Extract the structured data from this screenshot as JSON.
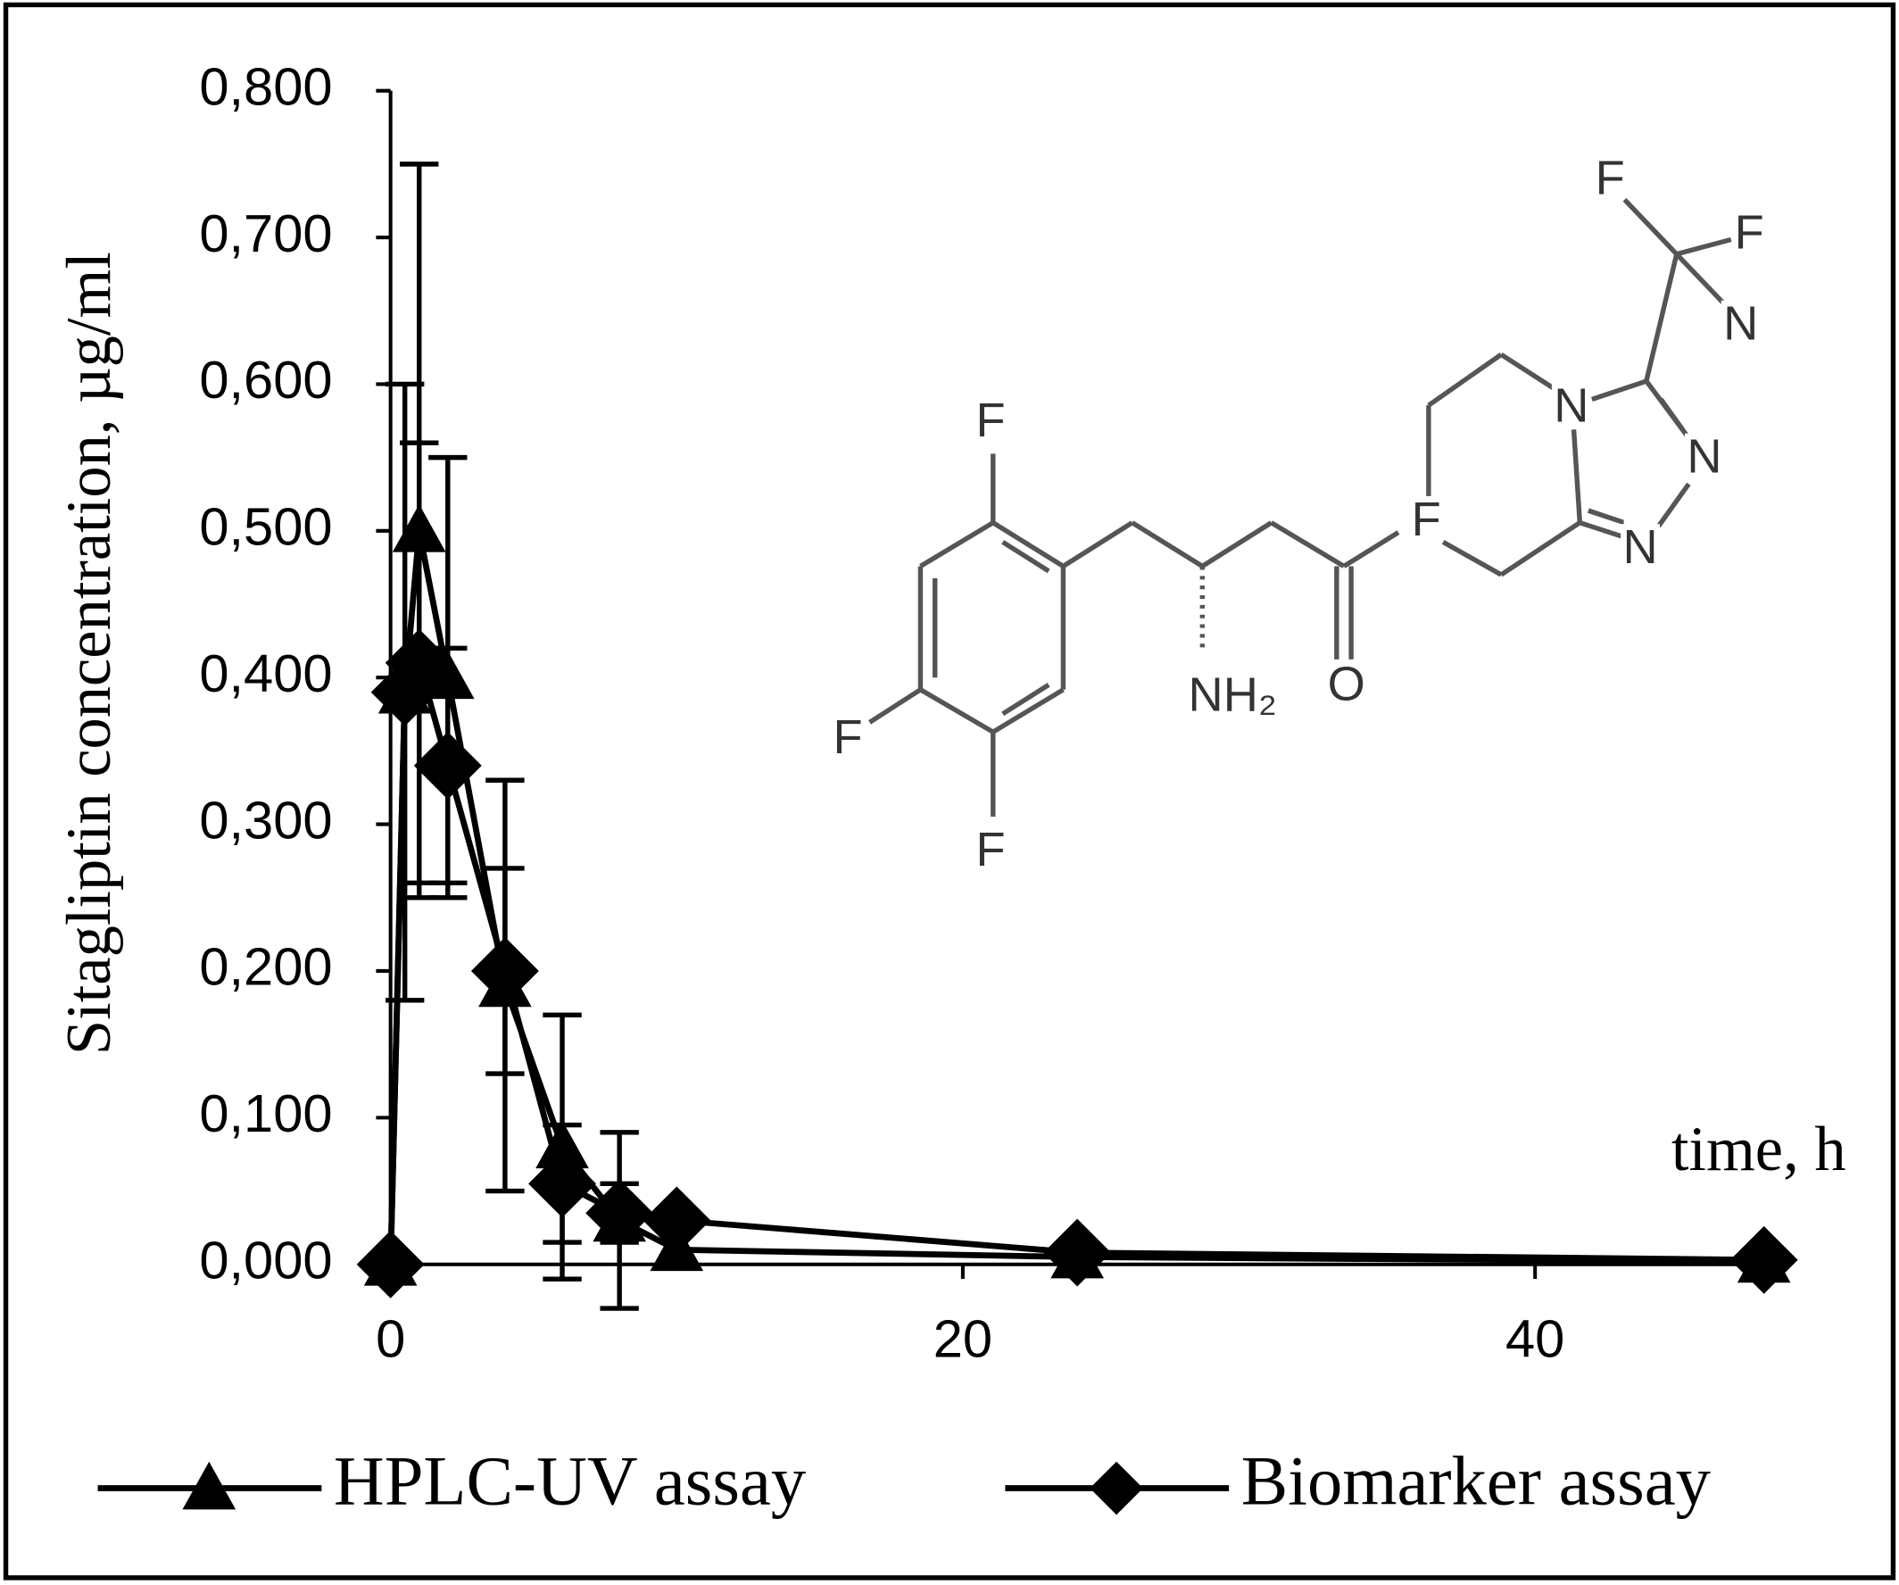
{
  "chart_data": {
    "type": "line",
    "y_label": "Sitagliptin concentration, µg/ml",
    "x_label": "time, h",
    "x": [
      0,
      0.5,
      1,
      2,
      4,
      6,
      8,
      10,
      24,
      48
    ],
    "series": [
      {
        "name": "HPLC-UV assay",
        "marker": "triangle",
        "color": "#000000",
        "values": [
          0,
          0.39,
          0.5,
          0.4,
          0.19,
          0.08,
          0.03,
          0.01,
          0.005,
          0.002
        ],
        "errors": [
          0,
          0.21,
          0.25,
          0.15,
          0.14,
          0.09,
          0.06,
          0,
          0,
          0
        ]
      },
      {
        "name": "Biomarker assay",
        "marker": "diamond",
        "color": "#000000",
        "values": [
          0,
          0.39,
          0.41,
          0.34,
          0.2,
          0.055,
          0.035,
          0.03,
          0.008,
          0.003
        ],
        "errors": [
          0,
          0,
          0.15,
          0.08,
          0.07,
          0.04,
          0.02,
          0,
          0,
          0
        ]
      }
    ],
    "xlim": [
      0,
      48
    ],
    "xticks": [
      0,
      20,
      40
    ],
    "ylim": [
      0,
      0.8
    ],
    "yticks": [
      {
        "value": 0,
        "label": "0,000"
      },
      {
        "value": 0.1,
        "label": "0,100"
      },
      {
        "value": 0.2,
        "label": "0,200"
      },
      {
        "value": 0.3,
        "label": "0,300"
      },
      {
        "value": 0.4,
        "label": "0,400"
      },
      {
        "value": 0.5,
        "label": "0,500"
      },
      {
        "value": 0.6,
        "label": "0,600"
      },
      {
        "value": 0.7,
        "label": "0,700"
      },
      {
        "value": 0.8,
        "label": "0,800"
      }
    ],
    "legend": "bottom"
  },
  "structure": {
    "labels": [
      "F",
      "F",
      "F",
      "N",
      "N",
      "N",
      "N",
      "F",
      "F",
      "F",
      "NH₂",
      "O"
    ]
  }
}
